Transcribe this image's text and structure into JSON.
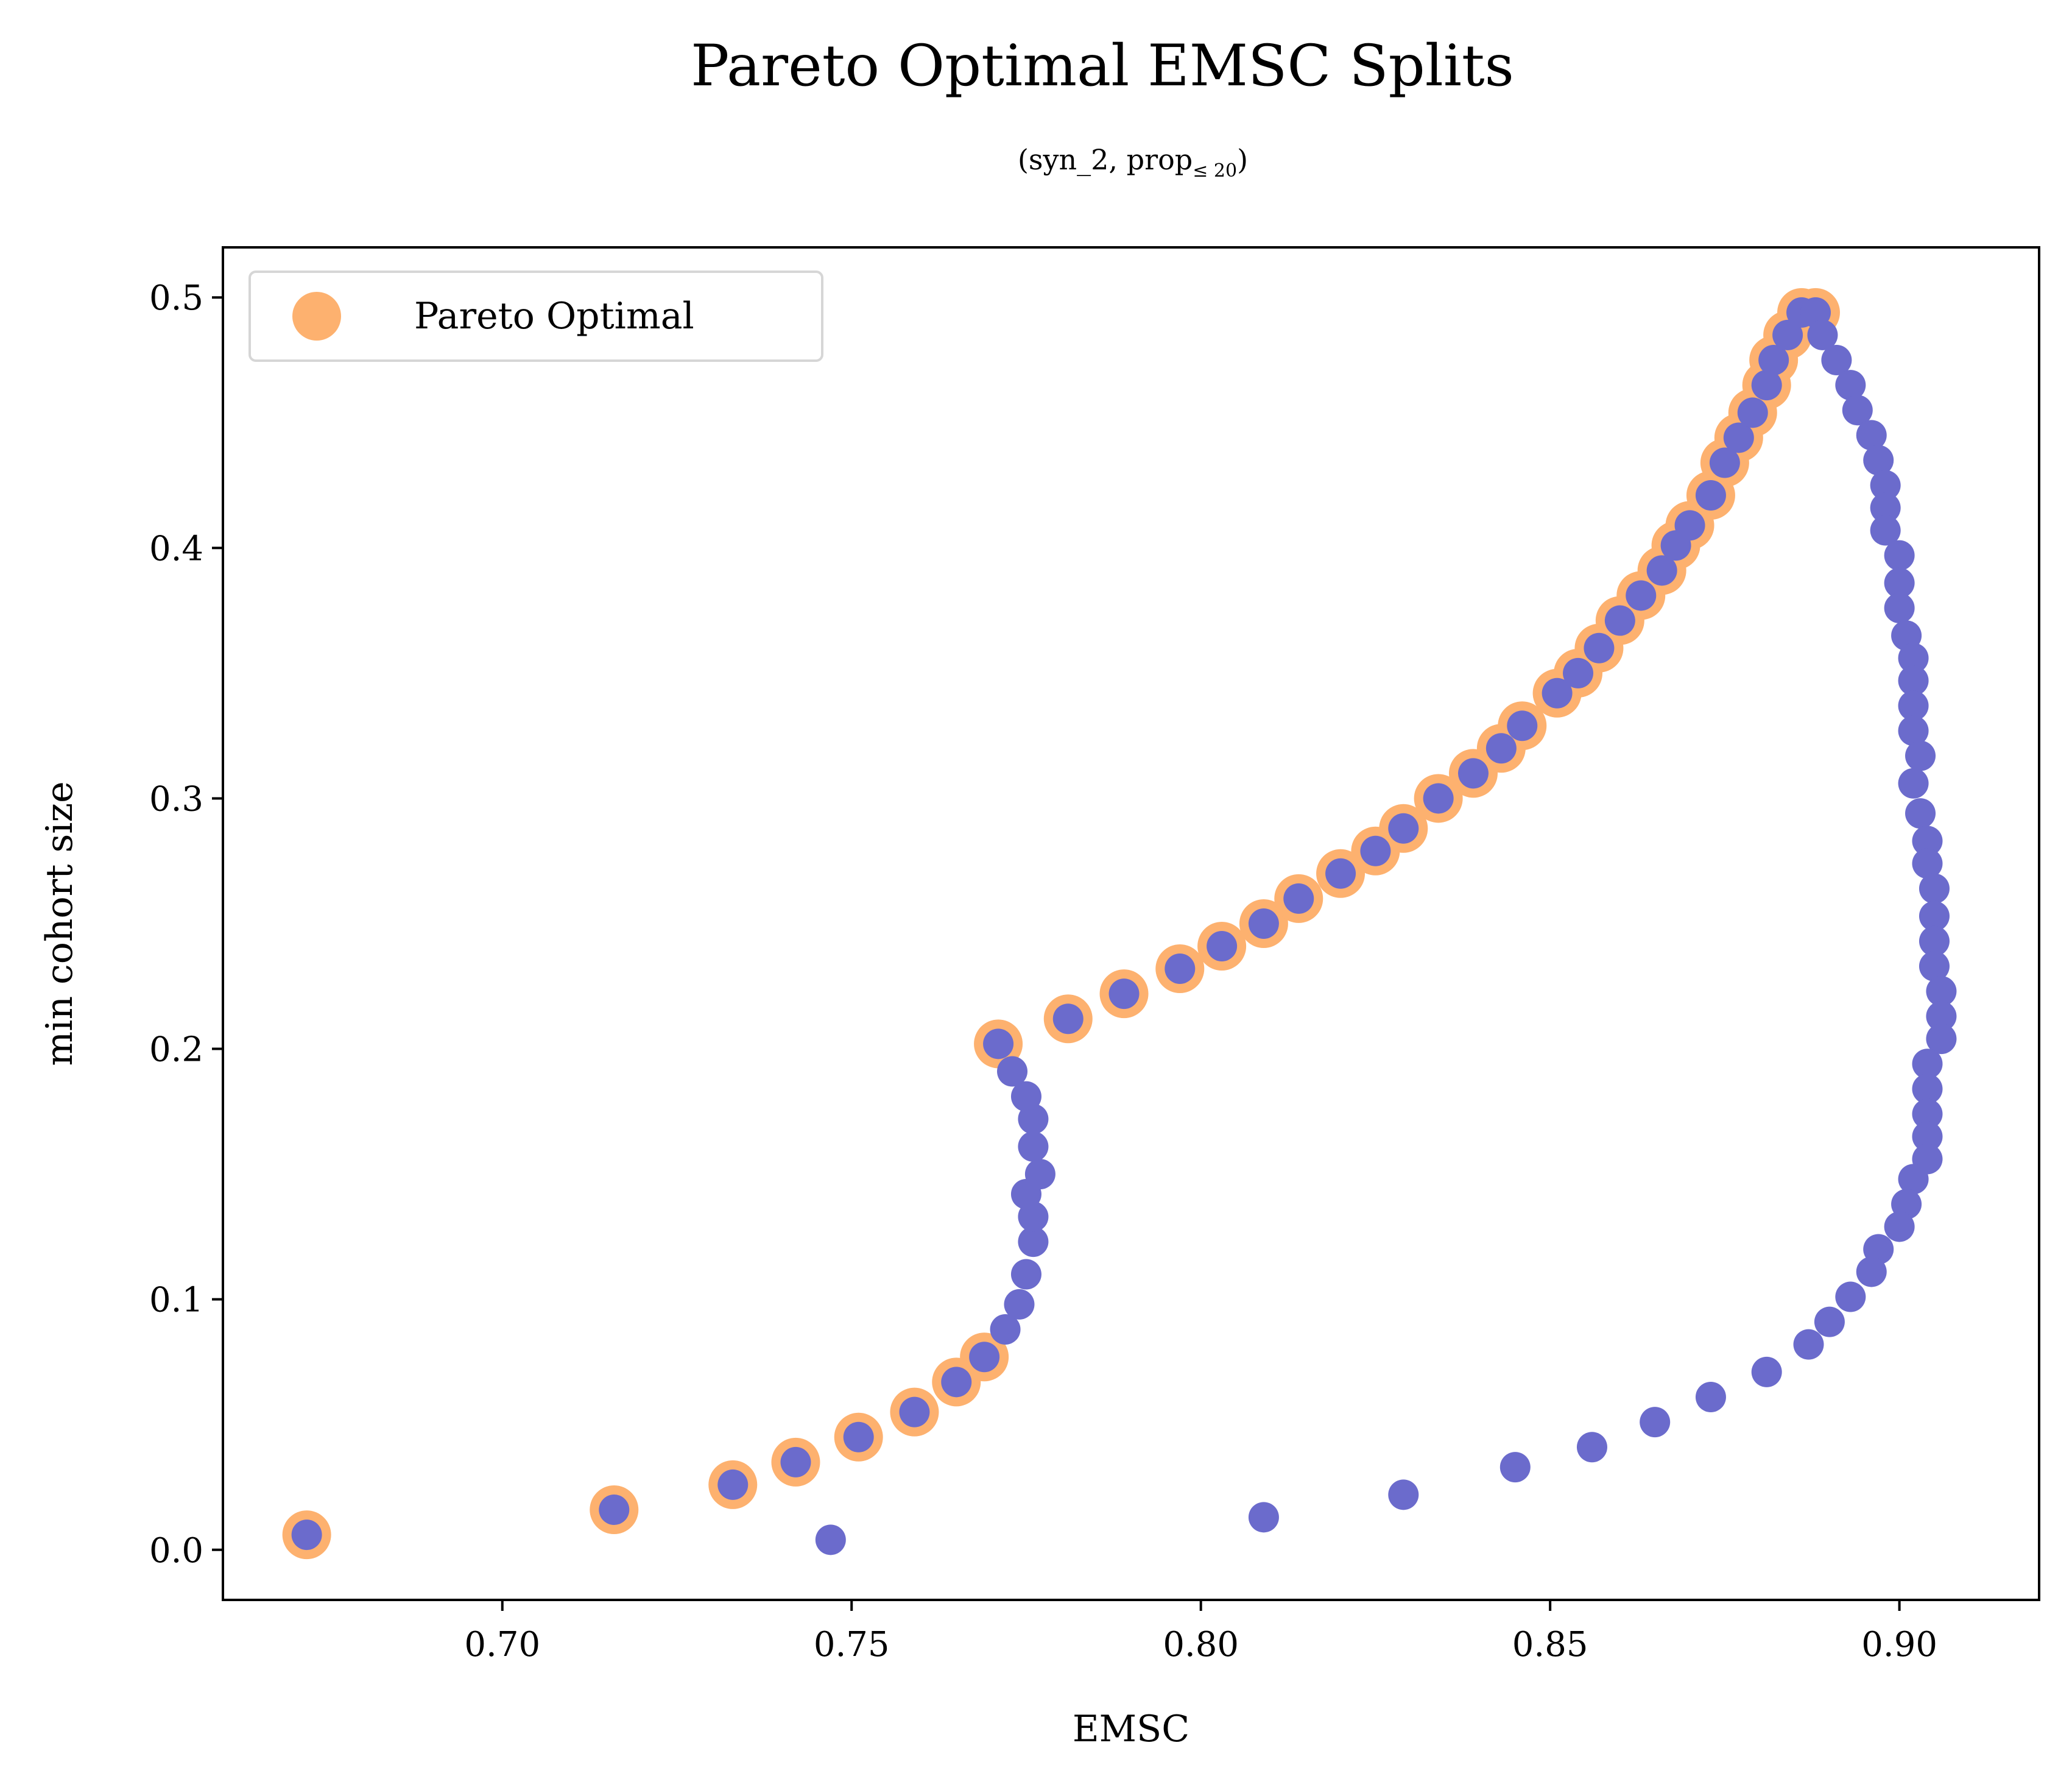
{
  "chart_data": {
    "type": "scatter",
    "title": "Pareto Optimal EMSC Splits",
    "subtitle": "(syn_2, prop",
    "subtitle_sub": "≤ 20",
    "subtitle_close": ")",
    "xlabel": "EMSC",
    "ylabel": "min cohort size",
    "xlim": [
      0.66,
      0.92
    ],
    "ylim": [
      -0.02,
      0.52
    ],
    "xticks": [
      0.7,
      0.75,
      0.8,
      0.85,
      0.9
    ],
    "xtick_labels": [
      "0.70",
      "0.75",
      "0.80",
      "0.85",
      "0.90"
    ],
    "yticks": [
      0.0,
      0.1,
      0.2,
      0.3,
      0.4,
      0.5
    ],
    "ytick_labels": [
      "0.0",
      "0.1",
      "0.2",
      "0.3",
      "0.4",
      "0.5"
    ],
    "grid": false,
    "legend": {
      "position": "top-left",
      "entries": [
        "Pareto Optimal"
      ]
    },
    "colors": {
      "all_points": "#6b6bcc",
      "pareto": "#fdb16f"
    },
    "series": [
      {
        "name": "Pareto Optimal",
        "points": [
          [
            0.672,
            0.006
          ],
          [
            0.716,
            0.016
          ],
          [
            0.733,
            0.026
          ],
          [
            0.742,
            0.035
          ],
          [
            0.751,
            0.045
          ],
          [
            0.759,
            0.055
          ],
          [
            0.765,
            0.067
          ],
          [
            0.769,
            0.077
          ],
          [
            0.771,
            0.202
          ],
          [
            0.781,
            0.212
          ],
          [
            0.789,
            0.222
          ],
          [
            0.797,
            0.232
          ],
          [
            0.803,
            0.241
          ],
          [
            0.809,
            0.25
          ],
          [
            0.814,
            0.26
          ],
          [
            0.82,
            0.27
          ],
          [
            0.825,
            0.279
          ],
          [
            0.829,
            0.288
          ],
          [
            0.834,
            0.3
          ],
          [
            0.839,
            0.31
          ],
          [
            0.843,
            0.32
          ],
          [
            0.846,
            0.329
          ],
          [
            0.851,
            0.342
          ],
          [
            0.854,
            0.35
          ],
          [
            0.857,
            0.36
          ],
          [
            0.86,
            0.371
          ],
          [
            0.863,
            0.381
          ],
          [
            0.866,
            0.391
          ],
          [
            0.868,
            0.401
          ],
          [
            0.87,
            0.409
          ],
          [
            0.873,
            0.421
          ],
          [
            0.875,
            0.434
          ],
          [
            0.877,
            0.444
          ],
          [
            0.879,
            0.454
          ],
          [
            0.881,
            0.465
          ],
          [
            0.882,
            0.475
          ],
          [
            0.884,
            0.485
          ],
          [
            0.886,
            0.494
          ],
          [
            0.888,
            0.494
          ]
        ]
      },
      {
        "name": "",
        "points": [
          [
            0.672,
            0.006
          ],
          [
            0.716,
            0.016
          ],
          [
            0.733,
            0.026
          ],
          [
            0.742,
            0.035
          ],
          [
            0.751,
            0.045
          ],
          [
            0.759,
            0.055
          ],
          [
            0.765,
            0.067
          ],
          [
            0.769,
            0.077
          ],
          [
            0.772,
            0.088
          ],
          [
            0.774,
            0.098
          ],
          [
            0.775,
            0.11
          ],
          [
            0.776,
            0.123
          ],
          [
            0.776,
            0.133
          ],
          [
            0.775,
            0.142
          ],
          [
            0.777,
            0.15
          ],
          [
            0.776,
            0.161
          ],
          [
            0.776,
            0.172
          ],
          [
            0.775,
            0.181
          ],
          [
            0.773,
            0.191
          ],
          [
            0.771,
            0.202
          ],
          [
            0.781,
            0.212
          ],
          [
            0.789,
            0.222
          ],
          [
            0.797,
            0.232
          ],
          [
            0.803,
            0.241
          ],
          [
            0.809,
            0.25
          ],
          [
            0.814,
            0.26
          ],
          [
            0.82,
            0.27
          ],
          [
            0.825,
            0.279
          ],
          [
            0.829,
            0.288
          ],
          [
            0.834,
            0.3
          ],
          [
            0.839,
            0.31
          ],
          [
            0.843,
            0.32
          ],
          [
            0.846,
            0.329
          ],
          [
            0.851,
            0.342
          ],
          [
            0.854,
            0.35
          ],
          [
            0.857,
            0.36
          ],
          [
            0.86,
            0.371
          ],
          [
            0.863,
            0.381
          ],
          [
            0.866,
            0.391
          ],
          [
            0.868,
            0.401
          ],
          [
            0.87,
            0.409
          ],
          [
            0.873,
            0.421
          ],
          [
            0.875,
            0.434
          ],
          [
            0.877,
            0.444
          ],
          [
            0.879,
            0.454
          ],
          [
            0.881,
            0.465
          ],
          [
            0.882,
            0.475
          ],
          [
            0.884,
            0.485
          ],
          [
            0.886,
            0.494
          ],
          [
            0.888,
            0.494
          ],
          [
            0.889,
            0.485
          ],
          [
            0.891,
            0.475
          ],
          [
            0.893,
            0.465
          ],
          [
            0.894,
            0.455
          ],
          [
            0.896,
            0.445
          ],
          [
            0.897,
            0.435
          ],
          [
            0.898,
            0.425
          ],
          [
            0.898,
            0.416
          ],
          [
            0.898,
            0.407
          ],
          [
            0.9,
            0.397
          ],
          [
            0.9,
            0.386
          ],
          [
            0.9,
            0.376
          ],
          [
            0.901,
            0.365
          ],
          [
            0.902,
            0.356
          ],
          [
            0.902,
            0.347
          ],
          [
            0.902,
            0.337
          ],
          [
            0.902,
            0.327
          ],
          [
            0.903,
            0.317
          ],
          [
            0.902,
            0.306
          ],
          [
            0.903,
            0.294
          ],
          [
            0.904,
            0.283
          ],
          [
            0.904,
            0.274
          ],
          [
            0.905,
            0.264
          ],
          [
            0.905,
            0.253
          ],
          [
            0.905,
            0.243
          ],
          [
            0.905,
            0.233
          ],
          [
            0.906,
            0.223
          ],
          [
            0.906,
            0.213
          ],
          [
            0.906,
            0.204
          ],
          [
            0.904,
            0.194
          ],
          [
            0.904,
            0.184
          ],
          [
            0.904,
            0.174
          ],
          [
            0.904,
            0.165
          ],
          [
            0.904,
            0.156
          ],
          [
            0.902,
            0.148
          ],
          [
            0.901,
            0.138
          ],
          [
            0.9,
            0.129
          ],
          [
            0.897,
            0.12
          ],
          [
            0.896,
            0.111
          ],
          [
            0.893,
            0.101
          ],
          [
            0.89,
            0.091
          ],
          [
            0.887,
            0.082
          ],
          [
            0.881,
            0.071
          ],
          [
            0.873,
            0.061
          ],
          [
            0.865,
            0.051
          ],
          [
            0.856,
            0.041
          ],
          [
            0.845,
            0.033
          ],
          [
            0.829,
            0.022
          ],
          [
            0.809,
            0.013
          ],
          [
            0.747,
            0.004
          ]
        ]
      }
    ]
  }
}
